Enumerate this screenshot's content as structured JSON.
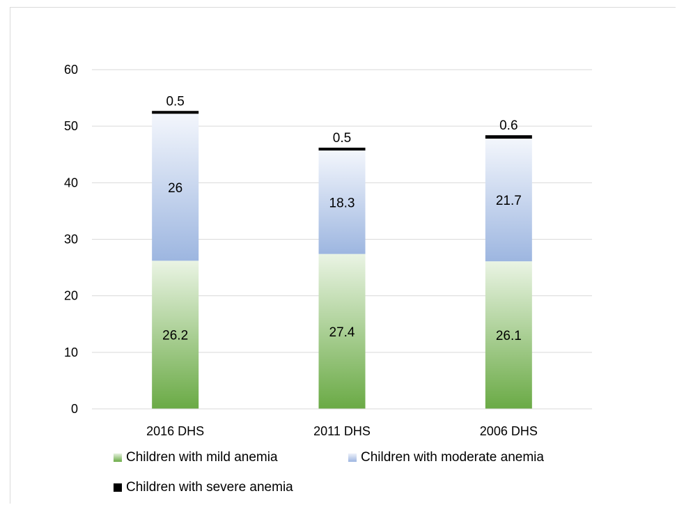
{
  "chart_data": {
    "type": "bar",
    "stacked": true,
    "categories": [
      "2016 DHS",
      "2011 DHS",
      "2006 DHS"
    ],
    "series": [
      {
        "name": "Children with mild anemia",
        "values": [
          26.2,
          27.4,
          26.1
        ],
        "color": "#6aaa45",
        "labels": [
          "26.2",
          "27.4",
          "26.1"
        ]
      },
      {
        "name": "Children with moderate anemia",
        "values": [
          26,
          18.3,
          21.7
        ],
        "color": "#9db6e0",
        "labels": [
          "26",
          "18.3",
          "21.7"
        ]
      },
      {
        "name": "Children with severe anemia",
        "values": [
          0.5,
          0.5,
          0.6
        ],
        "color": "#000000",
        "labels": [
          "0.5",
          "0.5",
          "0.6"
        ]
      }
    ],
    "ylim": [
      0,
      60
    ],
    "yticks": [
      "0",
      "10",
      "20",
      "30",
      "40",
      "50",
      "60"
    ],
    "grid": true,
    "legend_position": "bottom"
  }
}
